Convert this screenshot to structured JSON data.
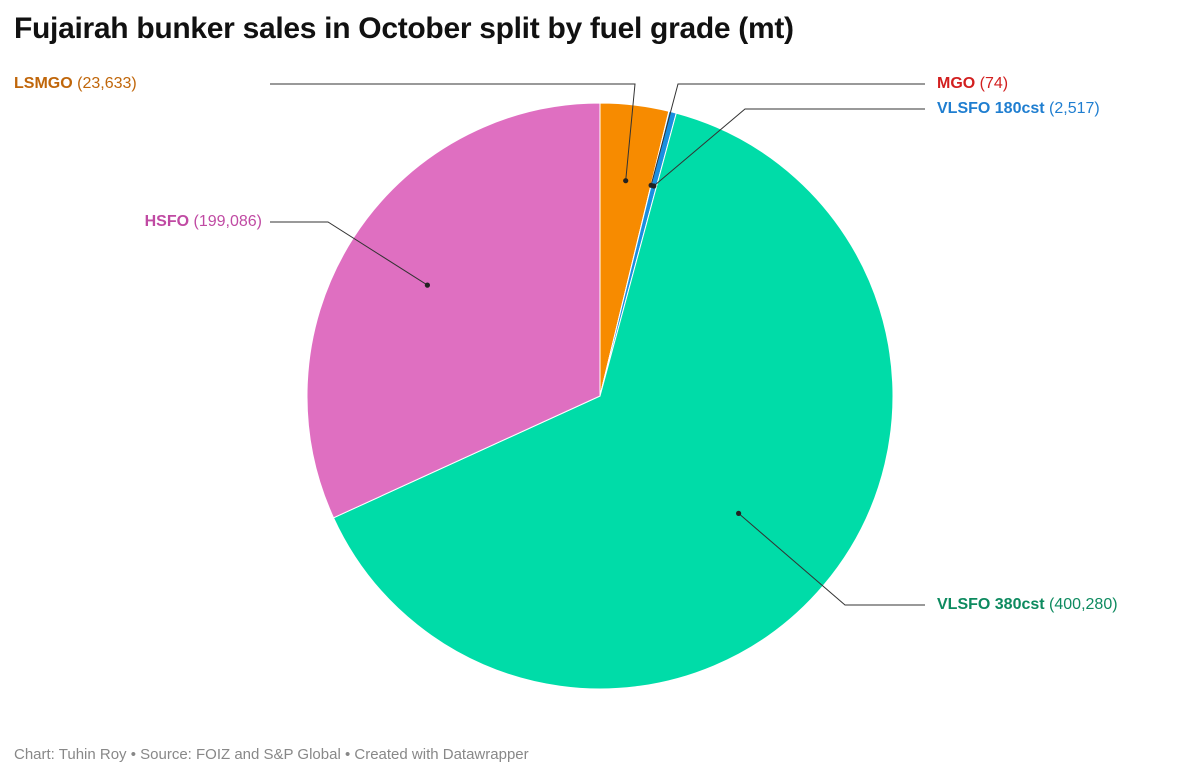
{
  "chart_data": {
    "type": "pie",
    "title": "Fujairah bunker sales in October split by fuel grade (mt)",
    "slices": [
      {
        "label": "LSMGO",
        "value": 23633,
        "value_text": "(23,633)",
        "color": "#f78b00",
        "label_color": "#c0660a"
      },
      {
        "label": "MGO",
        "value": 74,
        "value_text": "(74)",
        "color": "#e02b2b",
        "label_color": "#d21f1f"
      },
      {
        "label": "VLSFO 180cst",
        "value": 2517,
        "value_text": "(2,517)",
        "color": "#1a8fe0",
        "label_color": "#1f7ed0"
      },
      {
        "label": "VLSFO 380cst",
        "value": 400280,
        "value_text": "(400,280)",
        "color": "#00dca8",
        "label_color": "#0d8a5f"
      },
      {
        "label": "HSFO",
        "value": 199086,
        "value_text": "(199,086)",
        "color": "#df6fc1",
        "label_color": "#c04aa3"
      }
    ]
  },
  "footer": {
    "credit": "Chart: Tuhin Roy • Source: FOIZ and S&P Global • Created with Datawrapper"
  }
}
